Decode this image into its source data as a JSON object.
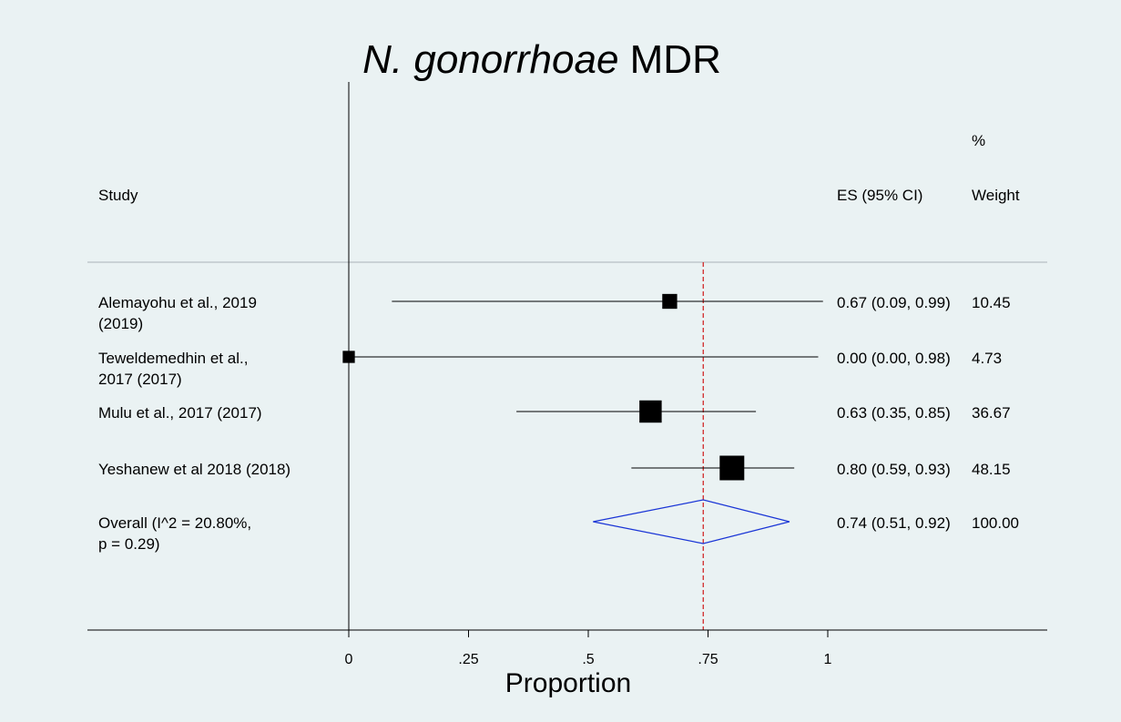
{
  "colors": {
    "background": "#eaf2f3",
    "diamond": "#1a35d6",
    "reference_line": "#d01818",
    "marks": "#000000"
  },
  "chart_data": {
    "type": "forest",
    "title_italic": "N. gonorrhoae",
    "title_rest": " MDR",
    "xlabel": "Proportion",
    "xlim": [
      0,
      1
    ],
    "xticks": [
      {
        "value": 0,
        "label": "0"
      },
      {
        "value": 0.25,
        "label": ".25"
      },
      {
        "value": 0.5,
        "label": ".5"
      },
      {
        "value": 0.75,
        "label": ".75"
      },
      {
        "value": 1,
        "label": "1"
      }
    ],
    "headers": {
      "study": "Study",
      "es": "ES (95% CI)",
      "weight_top": "%",
      "weight": "Weight"
    },
    "overall_line": 0.74,
    "studies": [
      {
        "label_lines": [
          "Alemayohu et al., 2019",
          "(2019)"
        ],
        "es": 0.67,
        "lower": 0.09,
        "upper": 0.99,
        "weight": 10.45,
        "es_text": "0.67 (0.09, 0.99)",
        "weight_text": "10.45"
      },
      {
        "label_lines": [
          "Teweldemedhin et al.,",
          "2017 (2017)"
        ],
        "es": 0.0,
        "lower": 0.0,
        "upper": 0.98,
        "weight": 4.73,
        "es_text": "0.00 (0.00, 0.98)",
        "weight_text": "4.73"
      },
      {
        "label_lines": [
          "Mulu et al., 2017 (2017)"
        ],
        "es": 0.63,
        "lower": 0.35,
        "upper": 0.85,
        "weight": 36.67,
        "es_text": "0.63 (0.35, 0.85)",
        "weight_text": "36.67"
      },
      {
        "label_lines": [
          "Yeshanew et al 2018 (2018)"
        ],
        "es": 0.8,
        "lower": 0.59,
        "upper": 0.93,
        "weight": 48.15,
        "es_text": "0.80 (0.59, 0.93)",
        "weight_text": "48.15"
      }
    ],
    "overall": {
      "label_lines": [
        "Overall  (I^2 = 20.80%,",
        "p = 0.29)"
      ],
      "es": 0.74,
      "lower": 0.51,
      "upper": 0.92,
      "es_text": "0.74 (0.51, 0.92)",
      "weight_text": "100.00"
    }
  }
}
